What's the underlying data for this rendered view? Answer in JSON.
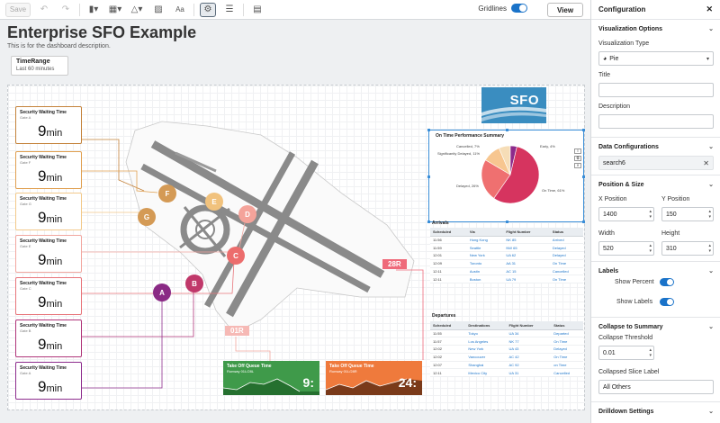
{
  "toolbar": {
    "save_label": "Save",
    "gridlines_label": "Gridlines",
    "gridlines_on": true,
    "view_label": "View"
  },
  "dashboard": {
    "title": "Enterprise SFO Example",
    "description": "This is for the dashboard description.",
    "timerange": {
      "label": "TimeRange",
      "value": "Last 60 minutes"
    }
  },
  "wait_cards": [
    {
      "title": "Security Waiting Time",
      "gate": "Gate A",
      "value": "9",
      "unit": "min",
      "color": "#c4823a"
    },
    {
      "title": "Security Waiting Time",
      "gate": "Gate F",
      "value": "9",
      "unit": "min",
      "color": "#e0a050"
    },
    {
      "title": "Security Waiting Time",
      "gate": "Gate G",
      "value": "9",
      "unit": "min",
      "color": "#f2c98a"
    },
    {
      "title": "Security Waiting Time",
      "gate": "Gate E",
      "value": "9",
      "unit": "min",
      "color": "#f2a7a0"
    },
    {
      "title": "Security Waiting Time",
      "gate": "Gate C",
      "value": "9",
      "unit": "min",
      "color": "#e8747a"
    },
    {
      "title": "Security Waiting Time",
      "gate": "Gate B",
      "value": "9",
      "unit": "min",
      "color": "#b0357a"
    },
    {
      "title": "Security Waiting Time",
      "gate": "Gate A",
      "value": "9",
      "unit": "min",
      "color": "#8e2d8e"
    }
  ],
  "gates": [
    {
      "label": "F",
      "color": "#d49a55"
    },
    {
      "label": "E",
      "color": "#f1c27d"
    },
    {
      "label": "D",
      "color": "#f4a39a"
    },
    {
      "label": "G",
      "color": "#d49a55"
    },
    {
      "label": "C",
      "color": "#ec6d6d"
    },
    {
      "label": "B",
      "color": "#c0386a"
    },
    {
      "label": "A",
      "color": "#8a2a85"
    }
  ],
  "runways": {
    "r28r": "28R",
    "r01r": "01R"
  },
  "taxi_cards": [
    {
      "title": "Take Off Queue Time",
      "sub": "Runway 01L/28L",
      "value": "9:",
      "color": "#3f9a4a"
    },
    {
      "title": "Take Off Queue Time",
      "sub": "Runway 01L/28R",
      "value": "24:",
      "color": "#ef7a3c"
    }
  ],
  "logo": {
    "text": "SFO"
  },
  "pie": {
    "title": "On Time Performance Summary",
    "tools": [
      "≡",
      "⧉",
      "✕"
    ]
  },
  "chart_data": {
    "type": "pie",
    "title": "On Time Performance Summary",
    "slices": [
      {
        "label": "On Time, 61%",
        "value": 61,
        "color": "#d6345f"
      },
      {
        "label": "Delayed, 26%",
        "value": 26,
        "color": "#ef7070"
      },
      {
        "label": "Significantly Delayed, 11%",
        "value": 11,
        "color": "#f7c690"
      },
      {
        "label": "Cancelled, 7%",
        "value": 7,
        "color": "#f6ddb7"
      },
      {
        "label": "Early, 4%",
        "value": 4,
        "color": "#8c2a8c"
      }
    ]
  },
  "arrivals": {
    "title": "Arrivals",
    "columns": [
      "Scheduled",
      "Via",
      "Flight Number",
      "Status"
    ],
    "rows": [
      [
        "11:56",
        "Hong Kong",
        "NK 85",
        "Arrived"
      ],
      [
        "11:59",
        "Seattle",
        "NW 65",
        "Delayed"
      ],
      [
        "12:01",
        "New York",
        "UA 62",
        "Delayed"
      ],
      [
        "12:09",
        "Toronto",
        "AA 31",
        "On Time"
      ],
      [
        "12:11",
        "Austin",
        "AC 15",
        "Cancelled"
      ],
      [
        "12:11",
        "Boston",
        "UA 79",
        "On Time"
      ]
    ]
  },
  "departures": {
    "title": "Departures",
    "columns": [
      "Scheduled",
      "Destinations",
      "Flight Number",
      "Status"
    ],
    "rows": [
      [
        "11:55",
        "Tokyo",
        "UA 34",
        "Departed"
      ],
      [
        "11:57",
        "Los Angeles",
        "NK 77",
        "On Time"
      ],
      [
        "12:02",
        "New York",
        "UA 43",
        "Delayed"
      ],
      [
        "12:02",
        "Vancouver",
        "AC 42",
        "On Time"
      ],
      [
        "12:07",
        "Shanghai",
        "AC 92",
        "on Time"
      ],
      [
        "12:11",
        "Mexico City",
        "UA 31",
        "Cancelled"
      ]
    ]
  },
  "config": {
    "title": "Configuration",
    "viz_options": "Visualization Options",
    "viz_type_label": "Visualization Type",
    "viz_type_value": "Pie",
    "title_label": "Title",
    "title_value": "",
    "description_label": "Description",
    "description_value": "",
    "data_config": "Data Configurations",
    "data_source": "search6",
    "pos_size": "Position & Size",
    "x_label": "X Position",
    "x_value": "1400",
    "y_label": "Y Position",
    "y_value": "150",
    "w_label": "Width",
    "w_value": "520",
    "h_label": "Height",
    "h_value": "310",
    "labels": "Labels",
    "show_percent_label": "Show Percent",
    "show_labels_label": "Show Labels",
    "collapse": "Collapse to Summary",
    "threshold_label": "Collapse Threshold",
    "threshold_value": "0.01",
    "slice_label_label": "Collapsed Slice Label",
    "slice_label_value": "All Others",
    "drilldown": "Drilldown Settings"
  }
}
